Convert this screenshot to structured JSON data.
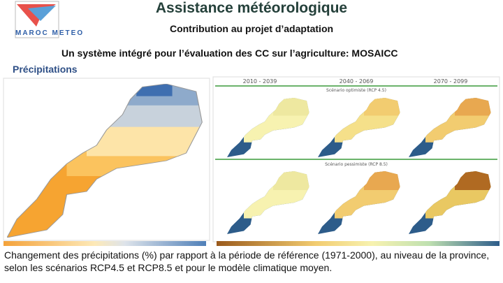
{
  "header": {
    "logo": "MAROC METEO",
    "title": "Assistance météorologique",
    "subtitle": "Contribution au projet d’adaptation"
  },
  "heading": "Un  système intégré pour l’évaluation des CC sur l’agriculture: MOSAICC",
  "section": "Précipitations",
  "panel": {
    "periods": [
      "2010 - 2039",
      "2040 - 2069",
      "2070 - 2099"
    ],
    "scenarios": [
      "Scénario optimiste (RCP 4.5)",
      "Scénario pessimiste (RCP 8.5)"
    ]
  },
  "caption": "Changement des précipitations (%) par rapport à la période de référence (1971-2000), au niveau de la province, selon les scénarios RCP4.5 et RCP8.5 et pour le modèle climatique moyen."
}
